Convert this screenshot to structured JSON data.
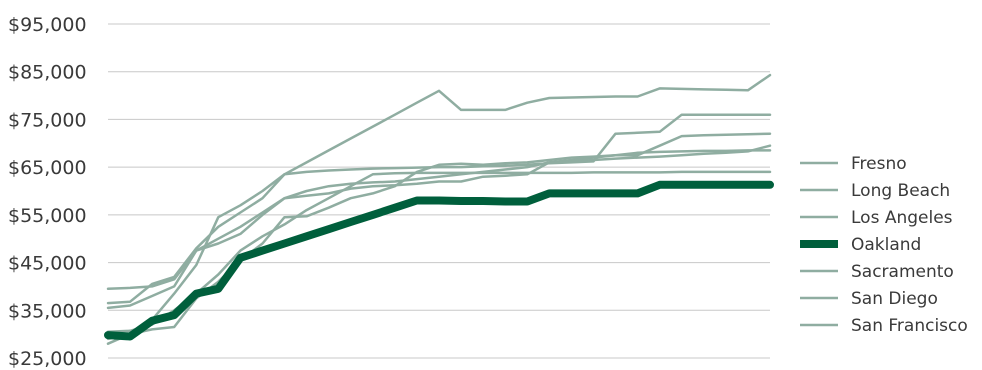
{
  "chart_data": {
    "type": "line",
    "title": "",
    "xlabel": "",
    "ylabel": "",
    "ylim": [
      25000,
      95000
    ],
    "y_ticks": [
      "$25,000",
      "$35,000",
      "$45,000",
      "$55,000",
      "$65,000",
      "$75,000",
      "$85,000",
      "$95,000"
    ],
    "y_tick_values": [
      25000,
      35000,
      45000,
      55000,
      65000,
      75000,
      85000,
      95000
    ],
    "grid": "horizontal",
    "legend_position": "right",
    "x_points": 31,
    "colors": {
      "default": "#8fada1",
      "highlight": "#005f3c"
    },
    "series": [
      {
        "name": "Fresno",
        "highlight": false,
        "values": [
          35500,
          36000,
          38000,
          40000,
          47500,
          49000,
          51000,
          55000,
          58500,
          60000,
          61000,
          61500,
          61800,
          62000,
          62500,
          63000,
          63500,
          64000,
          64500,
          65000,
          66000,
          66500,
          67000,
          67500,
          68000,
          68200,
          68300,
          68400,
          68400,
          68500,
          68500
        ]
      },
      {
        "name": "Long Beach",
        "highlight": false,
        "values": [
          39500,
          39700,
          40000,
          41500,
          47500,
          50000,
          52500,
          55500,
          58500,
          59000,
          59500,
          60500,
          61000,
          61200,
          61500,
          62000,
          62000,
          63000,
          63200,
          63500,
          66000,
          66200,
          66500,
          66800,
          67000,
          67200,
          67500,
          67800,
          68000,
          68300,
          69500
        ]
      },
      {
        "name": "Los Angeles",
        "highlight": false,
        "values": [
          36500,
          36800,
          40500,
          42000,
          48000,
          52500,
          55500,
          58500,
          63500,
          64000,
          64300,
          64500,
          64700,
          64800,
          64900,
          65000,
          65000,
          65200,
          65300,
          65500,
          65800,
          66000,
          66200,
          72000,
          72200,
          72400,
          76000,
          76000,
          76000,
          76000,
          76000
        ]
      },
      {
        "name": "Oakland",
        "highlight": true,
        "values": [
          29800,
          29500,
          32800,
          34000,
          38500,
          39500,
          46000,
          47500,
          49000,
          50500,
          52000,
          53500,
          55000,
          56500,
          58000,
          58000,
          57900,
          57900,
          57800,
          57800,
          59500,
          59500,
          59500,
          59500,
          59500,
          61300,
          61300,
          61300,
          61300,
          61300,
          61300
        ]
      },
      {
        "name": "Sacramento",
        "highlight": false,
        "values": [
          30500,
          30700,
          32000,
          35000,
          38500,
          42500,
          47500,
          50500,
          53000,
          56000,
          58500,
          61000,
          63500,
          63700,
          63800,
          63800,
          63800,
          63800,
          63800,
          63800,
          63800,
          63800,
          63900,
          63900,
          63900,
          63900,
          64000,
          64000,
          64000,
          64000,
          64000
        ]
      },
      {
        "name": "San Diego",
        "highlight": false,
        "values": [
          28000,
          30000,
          31000,
          31500,
          37500,
          41000,
          45500,
          49000,
          54500,
          54700,
          56500,
          58500,
          59500,
          61000,
          64000,
          65500,
          65700,
          65500,
          65800,
          66000,
          66500,
          67000,
          67200,
          67500,
          67500,
          69500,
          71500,
          71700,
          71800,
          71900,
          72000
        ]
      },
      {
        "name": "San Francisco",
        "highlight": false,
        "values": [
          29000,
          30000,
          33000,
          38500,
          44500,
          54500,
          57000,
          60000,
          63500,
          66000,
          68500,
          71000,
          73500,
          76000,
          78500,
          81000,
          77000,
          77000,
          77000,
          78500,
          79500,
          79600,
          79700,
          79800,
          79800,
          81500,
          81400,
          81300,
          81200,
          81100,
          84300
        ]
      }
    ]
  }
}
